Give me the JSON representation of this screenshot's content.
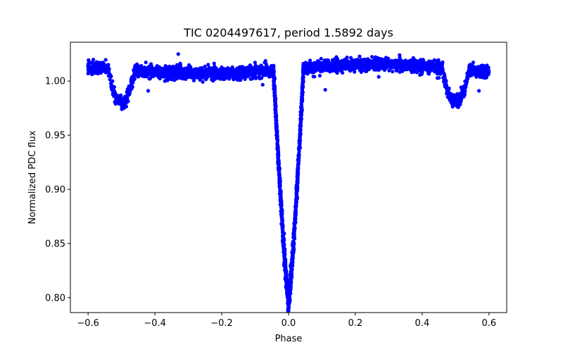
{
  "chart_data": {
    "type": "scatter",
    "title": "TIC 0204497617, period 1.5892 days",
    "xlabel": "Phase",
    "ylabel": "Normalized PDC flux",
    "xlim": [
      -0.653,
      0.653
    ],
    "ylim": [
      0.7862,
      1.0359
    ],
    "xticks": [
      -0.6,
      -0.4,
      -0.2,
      0.0,
      0.2,
      0.4,
      0.6
    ],
    "xtick_labels": [
      "−0.6",
      "−0.4",
      "−0.2",
      "0.0",
      "0.2",
      "0.4",
      "0.6"
    ],
    "yticks": [
      0.8,
      0.85,
      0.9,
      0.95,
      1.0
    ],
    "ytick_labels": [
      "0.80",
      "0.85",
      "0.90",
      "0.95",
      "1.00"
    ],
    "grid": false,
    "series": [
      {
        "name": "PDC flux",
        "color": "#0000ff",
        "marker": "circle",
        "x_range": [
          -0.6,
          0.6
        ],
        "primary_eclipse": {
          "center_phase": 0.0,
          "min_flux": 0.797,
          "half_width_phase": 0.045
        },
        "secondary_eclipse": {
          "center_phase": 0.5,
          "min_flux": 0.981,
          "half_width_phase": 0.04
        },
        "out_of_eclipse_flux_range": [
          1.0,
          1.022
        ],
        "outliers": [
          {
            "x": -0.42,
            "y": 0.991
          },
          {
            "x": -0.33,
            "y": 1.025
          },
          {
            "x": -0.37,
            "y": 1.0
          },
          {
            "x": 0.11,
            "y": 0.992
          },
          {
            "x": 0.27,
            "y": 1.004
          },
          {
            "x": 0.57,
            "y": 0.991
          },
          {
            "x": -0.1,
            "y": 1.004
          },
          {
            "x": 0.45,
            "y": 1.003
          }
        ]
      }
    ]
  }
}
